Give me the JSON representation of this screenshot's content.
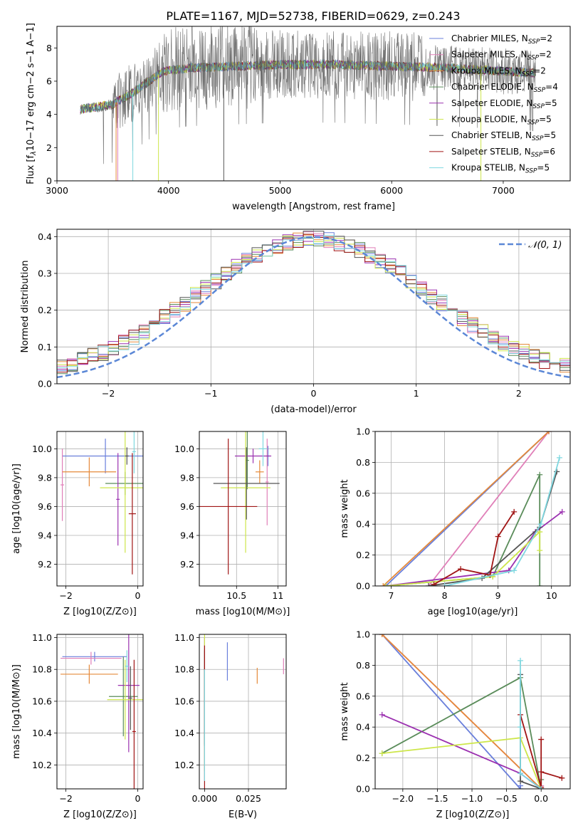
{
  "figure_title": "PLATE=1167, MJD=52738, FIBERID=0629, z=0.243",
  "colors": {
    "Chabrier MILES": "#6a7fdb",
    "Salpeter MILES": "#e07fb8",
    "Kroupa MILES": "#e58a3a",
    "Chabrier ELODIE": "#5a8c5a",
    "Salpeter ELODIE": "#9b30b0",
    "Kroupa ELODIE": "#cde64a",
    "Chabrier STELIB": "#555555",
    "Salpeter STELIB": "#a01515",
    "Kroupa STELIB": "#7fd8e0",
    "gauss": "#5b87d6",
    "grid": "#b0b0b0"
  },
  "chart_data": [
    {
      "id": "spectrum",
      "type": "line",
      "xlabel": "wavelength [Angstrom, rest frame]",
      "ylabel": "Flux [f",
      "ylabel_unit": "10−17 erg cm−2 s−1 A−1]",
      "xlim": [
        3000,
        7600
      ],
      "ylim": [
        0,
        9.3
      ],
      "xticks": [
        3000,
        4000,
        5000,
        6000,
        7000
      ],
      "yticks": [
        0,
        2,
        4,
        6,
        8
      ],
      "data_range": [
        3210,
        7290
      ],
      "continuum": [
        [
          3210,
          4.3
        ],
        [
          3500,
          4.6
        ],
        [
          3700,
          5.4
        ],
        [
          3950,
          6.6
        ],
        [
          4200,
          6.8
        ],
        [
          4600,
          6.9
        ],
        [
          5000,
          7.0
        ],
        [
          5500,
          7.0
        ],
        [
          6000,
          6.9
        ],
        [
          6500,
          6.8
        ],
        [
          7000,
          6.6
        ],
        [
          7290,
          6.5
        ]
      ],
      "legend": [
        {
          "key": "Chabrier MILES",
          "label": "Chabrier MILES, N",
          "n": "2"
        },
        {
          "key": "Salpeter MILES",
          "label": "Salpeter MILES, N",
          "n": "2"
        },
        {
          "key": "Kroupa MILES",
          "label": "Kroupa MILES, N",
          "n": "2"
        },
        {
          "key": "Chabrier ELODIE",
          "label": "Chabrier ELODIE, N",
          "n": "4"
        },
        {
          "key": "Salpeter ELODIE",
          "label": "Salpeter ELODIE, N",
          "n": "5"
        },
        {
          "key": "Kroupa ELODIE",
          "label": "Kroupa ELODIE, N",
          "n": "5"
        },
        {
          "key": "Chabrier STELIB",
          "label": "Chabrier STELIB, N",
          "n": "5"
        },
        {
          "key": "Salpeter STELIB",
          "label": "Salpeter STELIB, N",
          "n": "6"
        },
        {
          "key": "Kroupa STELIB",
          "label": "Kroupa STELIB, N",
          "n": "5"
        }
      ],
      "legend_sub": "SSP",
      "legend_placement": "right"
    },
    {
      "id": "residuals",
      "type": "step",
      "xlabel": "(data-model)/error",
      "ylabel": "Normed distribution",
      "xlim": [
        -2.5,
        2.5
      ],
      "ylim": [
        0,
        0.42
      ],
      "xticks": [
        -2,
        -1,
        0,
        1,
        2
      ],
      "yticks": [
        0.0,
        0.1,
        0.2,
        0.3,
        0.4
      ],
      "bin_width": 0.1,
      "legend": [
        {
          "key": "gauss",
          "label": "𝒩(0, 1)"
        }
      ],
      "legend_placement": "top-right"
    },
    {
      "id": "age_vs_Z",
      "type": "errorbar",
      "xlabel": "Z [log10(Z/Z⊙)]",
      "ylabel": "age  [log10(age/yr)]",
      "xlim": [
        -2.25,
        0.15
      ],
      "ylim": [
        9.05,
        10.12
      ],
      "xticks": [
        -2,
        0
      ],
      "yticks": [
        9.2,
        9.4,
        9.6,
        9.8,
        10.0
      ],
      "points": [
        {
          "key": "Chabrier MILES",
          "x": -0.9,
          "xerr": 1.2,
          "y": 9.95,
          "yerr": 0.12
        },
        {
          "key": "Salpeter MILES",
          "x": -2.1,
          "xerr": 0.05,
          "y": 9.75,
          "yerr": 0.25
        },
        {
          "key": "Kroupa MILES",
          "x": -1.35,
          "xerr": 0.75,
          "y": 9.84,
          "yerr": 0.1
        },
        {
          "key": "Chabrier ELODIE",
          "x": -0.35,
          "xerr": 0.55,
          "y": 9.76,
          "yerr": 0.08
        },
        {
          "key": "Salpeter ELODIE",
          "x": -0.55,
          "xerr": 0.05,
          "y": 9.65,
          "yerr": 0.32
        },
        {
          "key": "Kroupa ELODIE",
          "x": -0.35,
          "xerr": 0.7,
          "y": 9.73,
          "yerr": 0.45
        },
        {
          "key": "Chabrier STELIB",
          "x": -0.3,
          "xerr": 0.05,
          "y": 9.95,
          "yerr": 0.06
        },
        {
          "key": "Salpeter STELIB",
          "x": -0.15,
          "xerr": 0.1,
          "y": 9.55,
          "yerr": 0.42
        },
        {
          "key": "Kroupa STELIB",
          "x": -0.1,
          "xerr": 0.05,
          "y": 9.98,
          "yerr": 0.15
        }
      ]
    },
    {
      "id": "age_vs_mass",
      "type": "errorbar",
      "xlabel": "mass [log10(M/M⊙)]",
      "ylabel": "",
      "xlim": [
        10.05,
        11.1
      ],
      "ylim": [
        9.05,
        10.12
      ],
      "xticks": [
        10.5,
        11.0
      ],
      "yticks": [
        9.2,
        9.4,
        9.6,
        9.8,
        10.0
      ],
      "points": [
        {
          "key": "Chabrier MILES",
          "x": 10.88,
          "xerr": 0.02,
          "y": 9.95,
          "yerr": 0.07
        },
        {
          "key": "Salpeter MILES",
          "x": 10.87,
          "xerr": 0.02,
          "y": 9.77,
          "yerr": 0.3
        },
        {
          "key": "Kroupa MILES",
          "x": 10.78,
          "xerr": 0.05,
          "y": 9.84,
          "yerr": 0.08
        },
        {
          "key": "Chabrier ELODIE",
          "x": 10.63,
          "xerr": 0.02,
          "y": 9.92,
          "yerr": 0.2
        },
        {
          "key": "Salpeter ELODIE",
          "x": 10.7,
          "xerr": 0.22,
          "y": 9.95,
          "yerr": 0.05
        },
        {
          "key": "Kroupa ELODIE",
          "x": 10.61,
          "xerr": 0.3,
          "y": 9.73,
          "yerr": 0.45
        },
        {
          "key": "Chabrier STELIB",
          "x": 10.62,
          "xerr": 0.4,
          "y": 9.76,
          "yerr": 0.25
        },
        {
          "key": "Salpeter STELIB",
          "x": 10.4,
          "xerr": 0.35,
          "y": 9.6,
          "yerr": 0.47
        },
        {
          "key": "Kroupa STELIB",
          "x": 10.82,
          "xerr": 0.05,
          "y": 10.0,
          "yerr": 0.12
        }
      ]
    },
    {
      "id": "weight_vs_age",
      "type": "line",
      "xlabel": "age  [log10(age/yr)]",
      "ylabel": "mass weight",
      "xlim": [
        6.7,
        10.35
      ],
      "ylim": [
        0,
        1.0
      ],
      "xticks": [
        7,
        8,
        9,
        10
      ],
      "yticks": [
        0.0,
        0.2,
        0.4,
        0.6,
        0.8,
        1.0
      ],
      "series": [
        {
          "key": "Chabrier MILES",
          "x": [
            6.9,
            9.95
          ],
          "y": [
            0.0,
            1.0
          ]
        },
        {
          "key": "Salpeter MILES",
          "x": [
            7.7,
            9.95
          ],
          "y": [
            0.0,
            1.0
          ]
        },
        {
          "key": "Kroupa MILES",
          "x": [
            6.85,
            9.95
          ],
          "y": [
            0.0,
            1.0
          ]
        },
        {
          "key": "Chabrier ELODIE",
          "x": [
            6.9,
            8.9,
            9.78,
            9.78
          ],
          "y": [
            0.0,
            0.06,
            0.72,
            0.0
          ]
        },
        {
          "key": "Salpeter ELODIE",
          "x": [
            6.9,
            9.2,
            9.7,
            10.2
          ],
          "y": [
            0.0,
            0.1,
            0.35,
            0.48
          ]
        },
        {
          "key": "Kroupa ELODIE",
          "x": [
            6.9,
            8.9,
            9.78,
            9.78
          ],
          "y": [
            0.0,
            0.06,
            0.35,
            0.23
          ]
        },
        {
          "key": "Chabrier STELIB",
          "x": [
            7.7,
            8.7,
            9.78,
            10.1
          ],
          "y": [
            0.0,
            0.05,
            0.38,
            0.74
          ]
        },
        {
          "key": "Salpeter STELIB",
          "x": [
            7.8,
            8.3,
            8.85,
            9.0,
            9.3
          ],
          "y": [
            0.01,
            0.11,
            0.07,
            0.32,
            0.48
          ]
        },
        {
          "key": "Kroupa STELIB",
          "x": [
            8.0,
            9.3,
            9.8,
            10.15
          ],
          "y": [
            0.0,
            0.1,
            0.4,
            0.83
          ]
        }
      ]
    },
    {
      "id": "mass_vs_Z",
      "type": "errorbar",
      "xlabel": "Z [log10(Z/Z⊙)]",
      "ylabel": "mass [log10(M/M⊙)]",
      "xlim": [
        -2.25,
        0.15
      ],
      "ylim": [
        10.05,
        11.02
      ],
      "xticks": [
        -2,
        0
      ],
      "yticks": [
        10.2,
        10.4,
        10.6,
        10.8,
        11.0
      ],
      "points": [
        {
          "key": "Chabrier MILES",
          "x": -1.2,
          "xerr": 0.9,
          "y": 10.88,
          "yerr": 0.03
        },
        {
          "key": "Salpeter MILES",
          "x": -1.3,
          "xerr": 0.85,
          "y": 10.87,
          "yerr": 0.04
        },
        {
          "key": "Kroupa MILES",
          "x": -1.35,
          "xerr": 0.8,
          "y": 10.77,
          "yerr": 0.06
        },
        {
          "key": "Chabrier ELODIE",
          "x": -0.4,
          "xerr": 0.4,
          "y": 10.63,
          "yerr": 0.25
        },
        {
          "key": "Salpeter ELODIE",
          "x": -0.25,
          "xerr": 0.3,
          "y": 10.7,
          "yerr": 0.42
        },
        {
          "key": "Kroupa ELODIE",
          "x": -0.35,
          "xerr": 0.5,
          "y": 10.61,
          "yerr": 0.25
        },
        {
          "key": "Chabrier STELIB",
          "x": -0.2,
          "xerr": 0.05,
          "y": 10.62,
          "yerr": 0.2
        },
        {
          "key": "Salpeter STELIB",
          "x": -0.1,
          "xerr": 0.05,
          "y": 10.41,
          "yerr": 0.45
        },
        {
          "key": "Kroupa STELIB",
          "x": -0.3,
          "xerr": 0.05,
          "y": 10.82,
          "yerr": 0.1
        }
      ]
    },
    {
      "id": "mass_vs_ebv",
      "type": "errorbar",
      "xlabel": "E(B-V)",
      "ylabel": "",
      "xlim": [
        -0.003,
        0.0465
      ],
      "ylim": [
        10.05,
        11.02
      ],
      "xticks": [
        0.0,
        0.025
      ],
      "xtick_labels": [
        "0.000",
        "0.025"
      ],
      "yticks": [
        10.2,
        10.4,
        10.6,
        10.8,
        11.0
      ],
      "points": [
        {
          "key": "Chabrier MILES",
          "x": 0.013,
          "xerr": 0,
          "y": 10.85,
          "yerr": 0.12
        },
        {
          "key": "Salpeter MILES",
          "x": 0.045,
          "xerr": 0,
          "y": 10.82,
          "yerr": 0.05
        },
        {
          "key": "Kroupa MILES",
          "x": 0.03,
          "xerr": 0,
          "y": 10.76,
          "yerr": 0.05
        },
        {
          "key": "Chabrier ELODIE",
          "x": 0.0,
          "xerr": 0,
          "y": 10.63,
          "yerr": 0.3
        },
        {
          "key": "Salpeter ELODIE",
          "x": 0.0,
          "xerr": 0,
          "y": 10.7,
          "yerr": 0.3
        },
        {
          "key": "Kroupa ELODIE",
          "x": 0.0,
          "xerr": 0,
          "y": 10.61,
          "yerr": 0.45
        },
        {
          "key": "Chabrier STELIB",
          "x": 0.0,
          "xerr": 0,
          "y": 10.62,
          "yerr": 0.3
        },
        {
          "key": "Salpeter STELIB",
          "x": 0.0,
          "xerr": 0,
          "y": 10.5,
          "yerr": 0.45
        },
        {
          "key": "Kroupa STELIB",
          "x": 0.0,
          "xerr": 0,
          "y": 10.45,
          "yerr": 0.35
        }
      ]
    },
    {
      "id": "weight_vs_Z",
      "type": "line",
      "xlabel": "Z [log10(Z/Z⊙)]",
      "ylabel": "mass weight",
      "xlim": [
        -2.4,
        0.42
      ],
      "ylim": [
        0,
        1.0
      ],
      "xticks": [
        -2.0,
        -1.5,
        -1.0,
        -0.5,
        0.0
      ],
      "xtick_labels": [
        "−2.0",
        "−1.5",
        "−1.0",
        "−0.5",
        "0.0"
      ],
      "yticks": [
        0.0,
        0.2,
        0.4,
        0.6,
        0.8,
        1.0
      ],
      "series": [
        {
          "key": "Chabrier MILES",
          "x": [
            -2.3,
            -0.3,
            -0.3
          ],
          "y": [
            1.0,
            0.0,
            0.02
          ]
        },
        {
          "key": "Salpeter MILES",
          "x": [
            -2.3,
            0.0,
            0.0
          ],
          "y": [
            1.0,
            0.0,
            0.02
          ]
        },
        {
          "key": "Kroupa MILES",
          "x": [
            -2.3,
            0.0
          ],
          "y": [
            1.0,
            0.0
          ]
        },
        {
          "key": "Chabrier ELODIE",
          "x": [
            -2.3,
            -0.3,
            0.0,
            0.0
          ],
          "y": [
            0.23,
            0.72,
            0.0,
            0.06
          ]
        },
        {
          "key": "Salpeter ELODIE",
          "x": [
            -2.3,
            -0.3,
            0.0
          ],
          "y": [
            0.48,
            0.1,
            0.0
          ]
        },
        {
          "key": "Kroupa ELODIE",
          "x": [
            -2.3,
            -0.3,
            0.0
          ],
          "y": [
            0.23,
            0.33,
            0.0
          ]
        },
        {
          "key": "Chabrier STELIB",
          "x": [
            -0.3,
            -0.3,
            0.0
          ],
          "y": [
            0.74,
            0.05,
            0.0
          ]
        },
        {
          "key": "Salpeter STELIB",
          "x": [
            -0.3,
            0.0,
            0.0,
            0.0,
            0.3
          ],
          "y": [
            0.48,
            0.01,
            0.32,
            0.11,
            0.07
          ]
        },
        {
          "key": "Kroupa STELIB",
          "x": [
            -0.3,
            -0.3,
            -0.3,
            0.0
          ],
          "y": [
            0.83,
            0.4,
            0.1,
            0.0
          ]
        }
      ]
    }
  ]
}
